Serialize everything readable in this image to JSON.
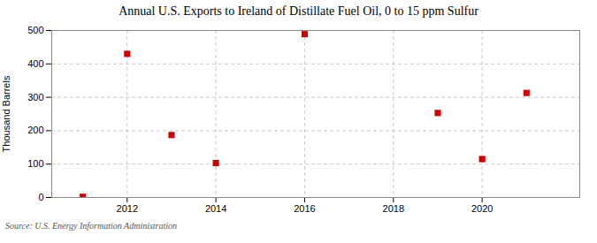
{
  "chart_data": {
    "type": "scatter",
    "title": "Annual U.S. Exports to Ireland of Distillate Fuel Oil, 0 to 15 ppm Sulfur",
    "ylabel": "Thousand Barrels",
    "source": "Source: U.S. Energy Information Administration",
    "x": [
      2011,
      2012,
      2013,
      2014,
      2016,
      2019,
      2020,
      2021
    ],
    "values": [
      2,
      430,
      187,
      103,
      489,
      253,
      115,
      313
    ],
    "color": "#cc0000",
    "marker": "square",
    "xlim": [
      2010.3,
      2022.2
    ],
    "xticks": [
      2012,
      2014,
      2016,
      2018,
      2020
    ],
    "ylim": [
      0,
      500
    ],
    "yticks": [
      0,
      100,
      200,
      300,
      400,
      500
    ],
    "grid": true
  }
}
